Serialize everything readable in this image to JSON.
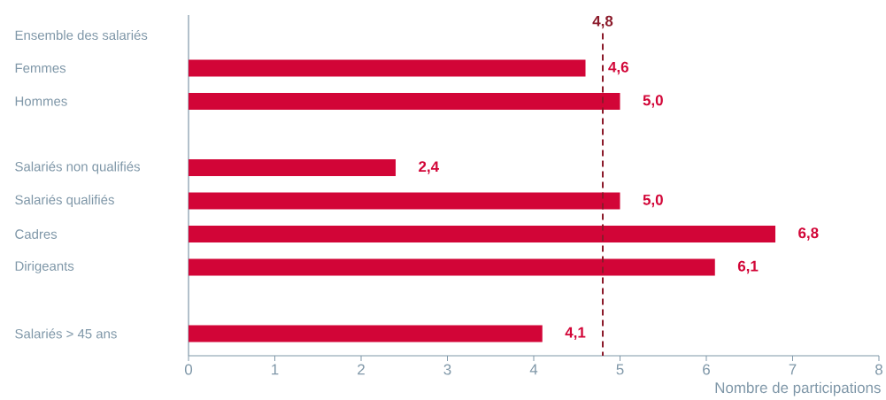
{
  "chart_data": {
    "type": "bar",
    "orientation": "horizontal",
    "xlabel": "Nombre de participations",
    "categories": [
      "Ensemble des salariés",
      "Femmes",
      "Hommes",
      null,
      "Salariés non qualifiés",
      "Salariés qualifiés",
      "Cadres",
      "Dirigeants",
      null,
      "Salariés > 45 ans"
    ],
    "values": [
      null,
      4.6,
      5.0,
      null,
      2.4,
      5.0,
      6.8,
      6.1,
      null,
      4.1
    ],
    "value_labels": [
      null,
      "4,6",
      "5,0",
      null,
      "2,4",
      "5,0",
      "6,8",
      "6,1",
      null,
      "4,1"
    ],
    "color": "#d20537",
    "xlim": [
      0,
      8
    ],
    "xticks": [
      0,
      1,
      2,
      3,
      4,
      5,
      6,
      7,
      8
    ],
    "ref_lines": [
      {
        "axis": "x",
        "value": 4.8,
        "label": "4,8",
        "color": "#8b1a2a",
        "line_style": "dashed"
      }
    ]
  }
}
